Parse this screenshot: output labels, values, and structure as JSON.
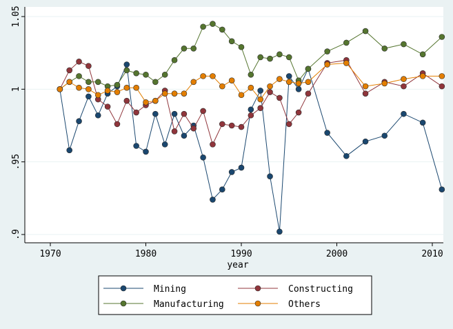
{
  "chart_data": {
    "type": "line",
    "title": "",
    "xlabel": "year",
    "ylabel": "",
    "xlim": [
      1970,
      2012
    ],
    "ylim": [
      0.9,
      1.05
    ],
    "xticks": [
      1970,
      1980,
      1990,
      2000,
      2010
    ],
    "yticks": [
      0.9,
      0.95,
      1.0,
      1.05
    ],
    "ytick_labels": [
      ".9",
      ".95",
      "1",
      "1.05"
    ],
    "grid": true,
    "legend": "bottom",
    "x": [
      1971,
      1972,
      1973,
      1974,
      1975,
      1976,
      1977,
      1978,
      1979,
      1980,
      1981,
      1982,
      1983,
      1984,
      1985,
      1986,
      1987,
      1988,
      1989,
      1990,
      1991,
      1992,
      1993,
      1994,
      1995,
      1996,
      1997,
      1999,
      2001,
      2003,
      2005,
      2007,
      2009,
      2011
    ],
    "series": [
      {
        "name": "Mining",
        "color": "#1a476f",
        "values": [
          1.0,
          0.958,
          0.978,
          0.995,
          0.982,
          0.997,
          1.002,
          1.017,
          0.961,
          0.957,
          0.983,
          0.962,
          0.983,
          0.968,
          0.975,
          0.953,
          0.924,
          0.931,
          0.943,
          0.946,
          0.986,
          0.999,
          0.94,
          0.902,
          1.009,
          1.0,
          1.014,
          0.97,
          0.954,
          0.964,
          0.968,
          0.983,
          0.977,
          0.931
        ]
      },
      {
        "name": "Constructing",
        "color": "#90353b",
        "values": [
          1.0,
          1.013,
          1.019,
          1.016,
          0.993,
          0.988,
          0.976,
          0.992,
          0.984,
          0.989,
          0.992,
          0.999,
          0.971,
          0.983,
          0.973,
          0.985,
          0.962,
          0.976,
          0.975,
          0.974,
          0.982,
          0.987,
          0.998,
          0.994,
          0.976,
          0.984,
          0.997,
          1.018,
          1.02,
          0.997,
          1.005,
          1.002,
          1.011,
          1.002
        ]
      },
      {
        "name": "Manufacturing",
        "color": "#55752f",
        "values": [
          1.0,
          1.005,
          1.009,
          1.005,
          1.005,
          1.002,
          1.003,
          1.013,
          1.011,
          1.01,
          1.005,
          1.01,
          1.02,
          1.028,
          1.028,
          1.043,
          1.045,
          1.041,
          1.033,
          1.029,
          1.01,
          1.022,
          1.021,
          1.024,
          1.022,
          1.006,
          1.014,
          1.026,
          1.032,
          1.04,
          1.028,
          1.031,
          1.024,
          1.036
        ]
      },
      {
        "name": "Others",
        "color": "#e37e00",
        "values": [
          1.0,
          1.005,
          1.001,
          1.0,
          0.996,
          0.999,
          0.998,
          1.001,
          1.001,
          0.991,
          0.992,
          0.997,
          0.997,
          0.997,
          1.005,
          1.009,
          1.009,
          1.002,
          1.006,
          0.996,
          1.001,
          0.993,
          1.002,
          1.007,
          1.005,
          1.004,
          1.005,
          1.017,
          1.018,
          1.002,
          1.004,
          1.007,
          1.009,
          1.009
        ]
      }
    ]
  }
}
